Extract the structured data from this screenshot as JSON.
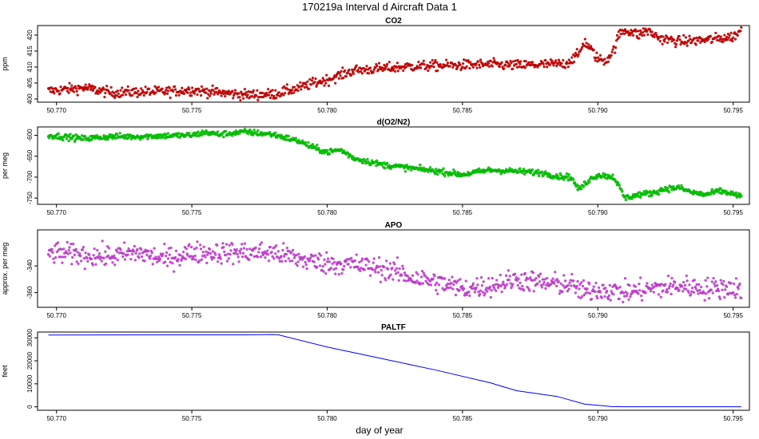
{
  "figure": {
    "title": "170219a   Interval d Aircraft Data 1",
    "xlabel": "day of year"
  },
  "chart_data": [
    {
      "type": "scatter",
      "title": "CO2",
      "ylabel": "ppm",
      "color": "#e00000",
      "xlim": [
        50.7693,
        50.7956
      ],
      "ylim": [
        399,
        423
      ],
      "xticks": [
        "50.770",
        "50.775",
        "50.780",
        "50.785",
        "50.790",
        "50.795"
      ],
      "xtick_values": [
        50.77,
        50.775,
        50.78,
        50.785,
        50.79,
        50.795
      ],
      "yticks": [
        "400",
        "405",
        "410",
        "415",
        "420"
      ],
      "ytick_values": [
        400,
        405,
        410,
        415,
        420
      ],
      "series": [
        {
          "x": [
            50.7697,
            50.771,
            50.772,
            50.773,
            50.774,
            50.775,
            50.776,
            50.777,
            50.778,
            50.7785,
            50.779,
            50.7795,
            50.78,
            50.7805,
            50.781,
            50.782,
            50.783,
            50.784,
            50.785,
            50.786,
            50.787,
            50.788,
            50.7888,
            50.7893,
            50.7895,
            50.7897,
            50.79,
            50.7903,
            50.7906,
            50.7908,
            50.791,
            50.7913,
            50.7915,
            50.7918,
            50.792,
            50.7923,
            50.793,
            50.794,
            50.795,
            50.7953
          ],
          "y": [
            402.5,
            403.5,
            402.0,
            402.2,
            402.3,
            402.8,
            402.0,
            401.3,
            401.5,
            402.5,
            403.5,
            405.0,
            406.0,
            407.5,
            409.0,
            409.5,
            410.2,
            410.4,
            410.6,
            410.8,
            410.5,
            410.8,
            411.0,
            414.0,
            418.0,
            416.0,
            412.5,
            412.0,
            415.5,
            420.5,
            421.5,
            421.0,
            420.0,
            421.5,
            420.5,
            419.0,
            418.0,
            418.5,
            419.5,
            421.5
          ]
        }
      ]
    },
    {
      "type": "scatter",
      "title": "d(O2/N2)",
      "ylabel": "per meg",
      "color": "#00dd00",
      "xlim": [
        50.7693,
        50.7956
      ],
      "ylim": [
        -765,
        -580
      ],
      "xticks": [
        "50.770",
        "50.775",
        "50.780",
        "50.785",
        "50.790",
        "50.795"
      ],
      "xtick_values": [
        50.77,
        50.775,
        50.78,
        50.785,
        50.79,
        50.795
      ],
      "yticks": [
        "-600",
        "-650",
        "-700",
        "-750"
      ],
      "ytick_values": [
        -600,
        -650,
        -700,
        -750
      ],
      "series": [
        {
          "x": [
            50.7697,
            50.771,
            50.772,
            50.773,
            50.774,
            50.775,
            50.7755,
            50.776,
            50.777,
            50.778,
            50.779,
            50.7795,
            50.78,
            50.7805,
            50.781,
            50.782,
            50.783,
            50.784,
            50.785,
            50.786,
            50.787,
            50.788,
            50.7885,
            50.789,
            50.7893,
            50.7897,
            50.79,
            50.7903,
            50.7906,
            50.791,
            50.7915,
            50.792,
            50.7925,
            50.793,
            50.7935,
            50.794,
            50.7945,
            50.795,
            50.7953
          ],
          "y": [
            -600,
            -608,
            -603,
            -603,
            -601,
            -600,
            -593,
            -598,
            -592,
            -598,
            -615,
            -630,
            -640,
            -635,
            -655,
            -670,
            -678,
            -685,
            -694,
            -683,
            -686,
            -690,
            -698,
            -700,
            -730,
            -705,
            -695,
            -697,
            -700,
            -750,
            -742,
            -738,
            -728,
            -725,
            -737,
            -742,
            -733,
            -740,
            -748
          ]
        }
      ]
    },
    {
      "type": "scatter",
      "title": "APO",
      "ylabel": "approx. per meg",
      "color": "#dd44ee",
      "xlim": [
        50.7693,
        50.7956
      ],
      "ylim": [
        -371,
        -313
      ],
      "xticks": [
        "50.770",
        "50.775",
        "50.780",
        "50.785",
        "50.790",
        "50.795"
      ],
      "xtick_values": [
        50.77,
        50.775,
        50.78,
        50.785,
        50.79,
        50.795
      ],
      "yticks": [
        "-340",
        "-360"
      ],
      "ytick_values": [
        -340,
        -360
      ],
      "series": [
        {
          "x": [
            50.7697,
            50.771,
            50.772,
            50.773,
            50.774,
            50.775,
            50.776,
            50.777,
            50.778,
            50.779,
            50.78,
            50.781,
            50.782,
            50.7825,
            50.783,
            50.784,
            50.785,
            50.786,
            50.787,
            50.788,
            50.789,
            50.7895,
            50.79,
            50.791,
            50.792,
            50.793,
            50.794,
            50.795,
            50.7953
          ],
          "y": [
            -330,
            -332,
            -333,
            -330,
            -335,
            -330,
            -330,
            -330,
            -330,
            -335,
            -338,
            -339,
            -342,
            -344,
            -348,
            -352,
            -357,
            -355,
            -350,
            -353,
            -354,
            -360,
            -357,
            -360,
            -357,
            -355,
            -357,
            -356,
            -358
          ]
        }
      ]
    },
    {
      "type": "line",
      "title": "PALTF",
      "ylabel": "feet",
      "color": "#0000ff",
      "xlim": [
        50.7693,
        50.7956
      ],
      "ylim": [
        -1500,
        32500
      ],
      "xticks": [
        "50.770",
        "50.775",
        "50.780",
        "50.785",
        "50.790",
        "50.795"
      ],
      "xtick_values": [
        50.77,
        50.775,
        50.78,
        50.785,
        50.79,
        50.795
      ],
      "yticks": [
        "0",
        "10000",
        "20000",
        "30000"
      ],
      "ytick_values": [
        0,
        10000,
        20000,
        30000
      ],
      "series": [
        {
          "x": [
            50.7697,
            50.777,
            50.778,
            50.7782,
            50.78,
            50.782,
            50.784,
            50.786,
            50.787,
            50.7885,
            50.7895,
            50.7905,
            50.791,
            50.793,
            50.7953
          ],
          "y": [
            31200,
            31300,
            31400,
            31300,
            26000,
            21000,
            16000,
            10500,
            7000,
            4500,
            1200,
            100,
            0,
            0,
            0
          ]
        }
      ]
    }
  ]
}
